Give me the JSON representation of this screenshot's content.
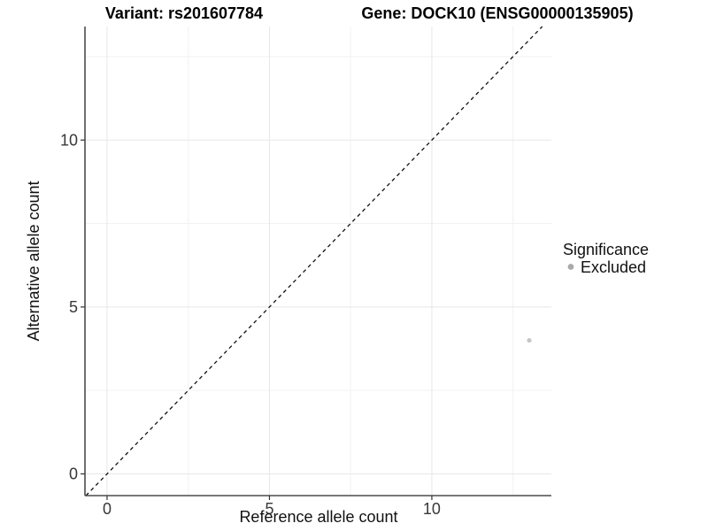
{
  "chart_data": {
    "type": "scatter",
    "titles": {
      "left": "Variant: rs201607784",
      "right": "Gene: DOCK10 (ENSG00000135905)"
    },
    "xlabel": "Reference allele count",
    "ylabel": "Alternative allele count",
    "xlim": [
      -0.68,
      13.68
    ],
    "ylim": [
      -0.65,
      13.4
    ],
    "x_ticks": [
      0,
      5,
      10
    ],
    "y_ticks": [
      0,
      5,
      10
    ],
    "x_minor_gridlines": [
      2.5,
      7.5,
      12.5
    ],
    "y_minor_gridlines": [
      2.5,
      7.5,
      12.5
    ],
    "grid": true,
    "points": [
      {
        "x": 13,
        "y": 4,
        "series": "Excluded"
      }
    ],
    "reference_line": {
      "type": "identity",
      "style": "dashed",
      "slope": 1,
      "intercept": 0
    },
    "legend": {
      "title": "Significance",
      "position": "right",
      "items": [
        {
          "label": "Excluded",
          "color": "#a9a9a9"
        }
      ]
    },
    "colors": {
      "background": "#ffffff",
      "point": "#c6c6c6",
      "legend_dot": "#a9a9a9",
      "grid_major": "#e7e7e7",
      "grid_minor": "#f2f2f2",
      "axis_line": "#4c4c4c",
      "tick_mark": "#333333",
      "reference_line": "#111111"
    }
  }
}
